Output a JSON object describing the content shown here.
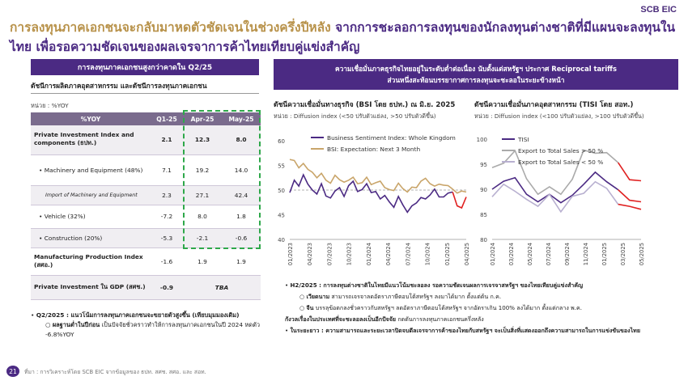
{
  "logo": "SCB EIC",
  "title": {
    "highlight": "การลงทุนภาคเอกชนจะกลับมาหดตัวชัดเจนในช่วงครึ่งปีหลัง",
    "rest": " จากการชะลอการลงทุนของนักลงทุนต่างชาติที่มีแผนจะลงทุนในไทย เพื่อรอความชัดเจนของผลเจรจาการค้าไทยเทียบคู่แข่งสำคัญ"
  },
  "left": {
    "banner": "การลงทุนภาคเอกชนสูงกว่าคาดใน Q2/25",
    "table_title": "ดัชนีการผลิตภาคอุตสาหกรรม และดัชนีการลงทุนภาคเอกชน",
    "unit": "หน่วย : %YOY",
    "headers": [
      "%YOY",
      "Q1-25",
      "Apr-25",
      "May-25"
    ],
    "rows": [
      {
        "label": "Private Investment Index and components (ธปท.)",
        "q1": "2.1",
        "apr": "12.3",
        "may": "8.0"
      },
      {
        "label": "• Machinery and Equipment (48%)",
        "q1": "7.1",
        "apr": "19.2",
        "may": "14.0"
      },
      {
        "label": "Import of Machinery and Equipment",
        "q1": "2.3",
        "apr": "27.1",
        "may": "42.4"
      },
      {
        "label": "• Vehicle (32%)",
        "q1": "-7.2",
        "apr": "8.0",
        "may": "1.8"
      },
      {
        "label": "• Construction (20%)",
        "q1": "-5.3",
        "apr": "-2.1",
        "may": "-0.6"
      },
      {
        "label": "Manufacturing Production Index (สศอ.)",
        "q1": "-1.6",
        "apr": "1.9",
        "may": "1.9"
      },
      {
        "label": "Private Investment ใน GDP (สศช.)",
        "q1": "-0.9",
        "tba": "TBA"
      }
    ],
    "note1_head": "Q2/2025 : แนวโน้มการลงทุนภาคเอกชนจะขยายตัวสูงขึ้น (เทียบมุมมองเดิม)",
    "note2_head": "ผลฐานต่ำในปีก่อน",
    "note2_rest": " เป็นปัจจัยชั่วคราวทำให้การลงทุนภาคเอกชนในปี 2024 หดตัว -6.8%YOY"
  },
  "right": {
    "banner_line1": "ความเชื่อมั่นภาคธุรกิจไทยอยู่ในระดับต่ำต่อเนื่อง นับตั้งแต่สหรัฐฯ ประกาศ Reciprocal tariffs",
    "banner_line2": "ส่วนหนึ่งสะท้อนบรรยากาศการลงทุนจะชะลอในระยะข้างหน้า",
    "bsi_title": "ดัชนีความเชื่อมั่นทางธุรกิจ (BSI โดย ธปท.) ณ มิ.ย. 2025",
    "bsi_unit": "หน่วย : Diffusion index (<50 ปรับตัวแย่ลง, >50 ปรับตัวดีขึ้น)",
    "tisi_title": "ดัชนีความเชื่อมั่นภาคอุตสาหกรรม (TISI โดย สอท.)",
    "tisi_unit": "หน่วย : Diffusion index (<100 ปรับตัวแย่ลง, >100 ปรับตัวดีขึ้น)",
    "note_h2_head": "H2/2025 : การลงทุนต่างชาติในไทยมีแนวโน้มชะลอลง รอความชัดเจนผลการเจรจาสหรัฐฯ ของไทยเทียบคู่แข่งสำคัญ",
    "note_vn_head": "เวียดนาม",
    "note_vn_rest": " สามารถเจรจาลดอัตราภาษีตอบโต้สหรัฐฯ ลงมาได้มาก ตั้งแต่ต้น ก.ค.",
    "note_cn_head": "จีน",
    "note_cn_rest": " บรรลุข้อตกลงชั่วคราวกับสหรัฐฯ ลดอัตราภาษีตอบโต้สหรัฐฯ จากอัตราเกิน 100% ลงได้มาก ตั้งแต่กลาง พ.ค.",
    "note_policy_head": "กังวลเรื่องในประเทศที่จะชะลอลงเป็นอีกปัจจัย",
    "note_policy_rest": " กดดันการลงทุนภาคเอกชนครึ่งหลัง",
    "note_long": "ในระยะยาว : ความสามารถและระยะเวลาปิดจบดีลเจรจาการค้าของไทยกับสหรัฐฯ จะเป็นสิ่งที่แสดงออกถึงความสามารถในการแข่งขันของไทย"
  },
  "footer": {
    "page": "21",
    "source": "ที่มา : การวิเคราะห์โดย SCB EIC จากข้อมูลของ ธปท. สศช. สศอ. และ สอท."
  },
  "chart_data": [
    {
      "type": "line",
      "title": "ดัชนีความเชื่อมั่นทางธุรกิจ (BSI โดย ธปท.) ณ มิ.ย. 2025",
      "ylim": [
        40,
        60
      ],
      "yticks": [
        40,
        45,
        50,
        55,
        60
      ],
      "xticks": [
        "01/2023",
        "04/2023",
        "07/2023",
        "10/2023",
        "01/2024",
        "04/2024",
        "07/2024",
        "10/2024",
        "01/2025",
        "04/2025"
      ],
      "reference_line": 50,
      "legend_position": "top-right",
      "colors": {
        "current": "#4b2a83",
        "expect": "#c9a56a",
        "recent": "#e02020"
      },
      "series": [
        {
          "name": "Business Sentiment Index: Whole Kingdom",
          "values": [
            49.5,
            52.0,
            50.8,
            53.1,
            51.2,
            50.0,
            49.2,
            51.3,
            48.8,
            48.4,
            49.8,
            50.5,
            48.7,
            50.9,
            51.8,
            49.7,
            50.1,
            51.3,
            49.5,
            49.7,
            48.2,
            48.9,
            47.6,
            46.5,
            48.7,
            47.0,
            45.5,
            46.8,
            47.4,
            48.5,
            48.2,
            49.0,
            50.2,
            48.6,
            48.6,
            49.4,
            49.6,
            46.8,
            46.4,
            48.6
          ]
        },
        {
          "name": "BSI: Expectation: Next 3 Month",
          "values": [
            56.2,
            56.0,
            54.5,
            55.4,
            54.2,
            53.6,
            52.5,
            53.4,
            52.0,
            51.4,
            53.0,
            52.1,
            51.6,
            52.0,
            52.6,
            51.3,
            51.5,
            52.6,
            51.1,
            51.5,
            51.8,
            50.5,
            50.1,
            49.9,
            51.4,
            50.3,
            49.6,
            50.6,
            50.5,
            51.8,
            52.4,
            51.3,
            50.8,
            51.2,
            51.0,
            50.9,
            50.2,
            49.4,
            49.8,
            49.6
          ]
        }
      ]
    },
    {
      "type": "line",
      "title": "ดัชนีความเชื่อมั่นภาคอุตสาหกรรม (TISI โดย สอท.)",
      "ylim": [
        80,
        100
      ],
      "yticks": [
        80,
        85,
        90,
        95,
        100
      ],
      "xticks": [
        "01/2024",
        "03/2024",
        "05/2024",
        "07/2024",
        "09/2024",
        "11/2024",
        "01/2025",
        "03/2025",
        "05/2025"
      ],
      "legend_position": "top-left",
      "colors": {
        "tisi": "#4b2a83",
        "export_gt": "#aaaaaa",
        "export_lt": "#b8b0d0",
        "recent": "#e02020"
      },
      "series": [
        {
          "name": "TISI",
          "values": [
            90.0,
            91.6,
            92.3,
            89.0,
            87.5,
            89.0,
            87.3,
            88.8,
            91.0,
            93.4,
            91.5,
            89.9,
            87.8,
            87.5
          ]
        },
        {
          "name": "Export to Total Sales > 50 %",
          "values": [
            94.3,
            95.2,
            97.7,
            92.1,
            89.0,
            90.5,
            89.0,
            92.0,
            97.8,
            97.2,
            97.3,
            95.3,
            91.9,
            91.7
          ]
        },
        {
          "name": "Export to Total Sales < 50 %",
          "values": [
            88.5,
            91.0,
            89.6,
            88.0,
            86.6,
            89.0,
            85.5,
            88.6,
            89.2,
            91.5,
            90.2,
            87.0,
            86.6,
            86.0
          ]
        }
      ]
    }
  ]
}
